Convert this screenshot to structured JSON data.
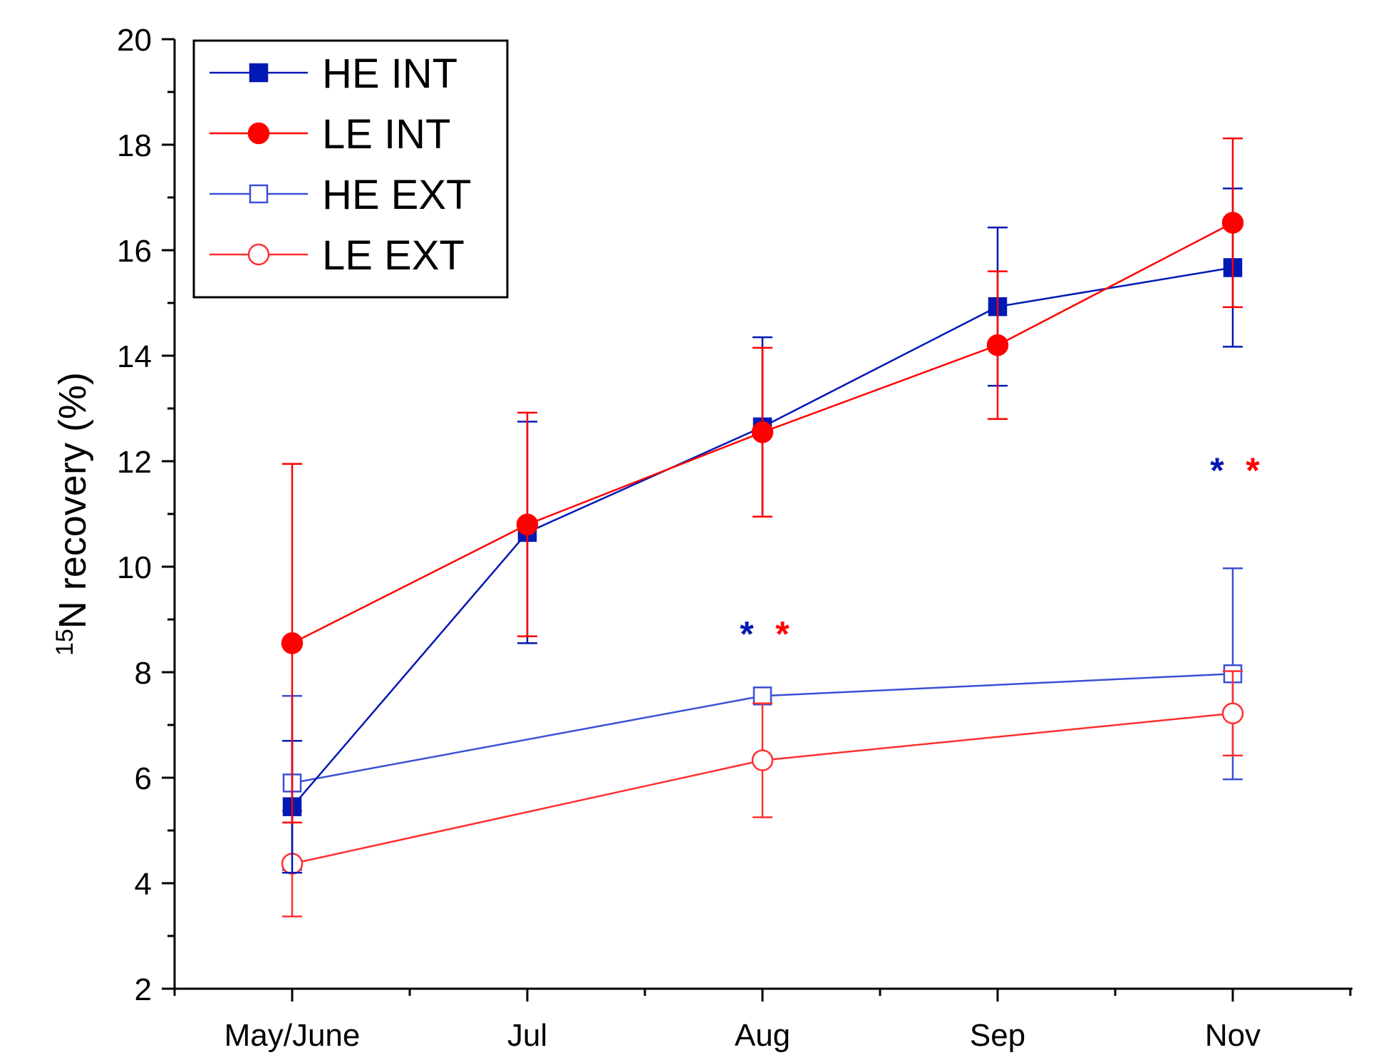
{
  "chart_data": {
    "type": "line",
    "title": "",
    "xlabel": "",
    "ylabel_superscript": "15",
    "ylabel_main": "N recovery (%)",
    "ylim": [
      2,
      20
    ],
    "yticks": [
      "2",
      "4",
      "6",
      "8",
      "10",
      "12",
      "14",
      "16",
      "18",
      "20"
    ],
    "categories": [
      "May/June",
      "Jul",
      "Aug",
      "Sep",
      "Nov"
    ],
    "legend_position": "top-left",
    "series": [
      {
        "name": "HE INT",
        "color": "#0019b4",
        "marker": "square",
        "filled": true,
        "x": [
          "May/June",
          "Jul",
          "Aug",
          "Sep",
          "Nov"
        ],
        "values": [
          5.45,
          10.65,
          12.65,
          14.93,
          15.67
        ],
        "errors": [
          1.25,
          2.1,
          1.7,
          1.5,
          1.5
        ]
      },
      {
        "name": "LE INT",
        "color": "#ff0000",
        "marker": "circle",
        "filled": true,
        "x": [
          "May/June",
          "Jul",
          "Aug",
          "Sep",
          "Nov"
        ],
        "values": [
          8.55,
          10.8,
          12.55,
          14.2,
          16.52
        ],
        "errors": [
          3.4,
          2.12,
          1.6,
          1.4,
          1.6
        ]
      },
      {
        "name": "HE EXT",
        "color": "#3b4fd6",
        "marker": "square",
        "filled": false,
        "x": [
          "May/June",
          "Aug",
          "Nov"
        ],
        "values": [
          5.9,
          7.55,
          7.97
        ],
        "errors": [
          1.65,
          0,
          2.0
        ]
      },
      {
        "name": "LE EXT",
        "color": "#ff3030",
        "marker": "circle",
        "filled": false,
        "x": [
          "May/June",
          "Aug",
          "Nov"
        ],
        "values": [
          4.37,
          6.33,
          7.22
        ],
        "errors": [
          1.0,
          1.08,
          0.8
        ]
      }
    ],
    "annotations": [
      {
        "text": "*",
        "category": "Aug",
        "y": 8.9,
        "color": "#0019b4",
        "offset": "left"
      },
      {
        "text": "*",
        "category": "Aug",
        "y": 8.9,
        "color": "#ff0000",
        "offset": "right"
      },
      {
        "text": "*",
        "category": "Nov",
        "y": 12.0,
        "color": "#0019b4",
        "offset": "left"
      },
      {
        "text": "*",
        "category": "Nov",
        "y": 12.0,
        "color": "#ff0000",
        "offset": "right"
      }
    ]
  }
}
